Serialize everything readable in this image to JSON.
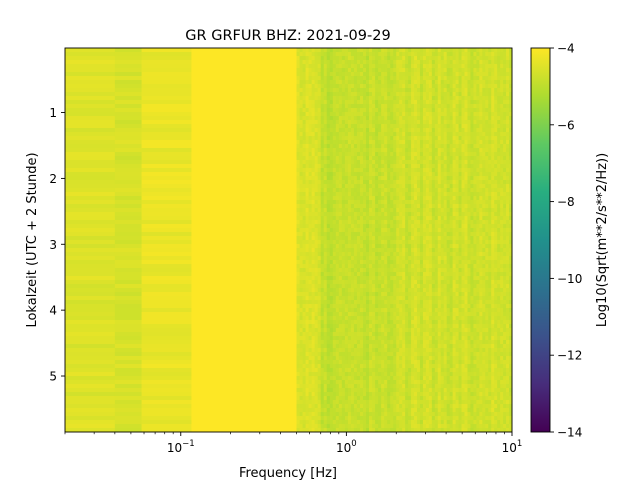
{
  "chart_data": {
    "type": "heatmap",
    "title": "GR GRFUR  BHZ: 2021-09-29",
    "xlabel": "Frequency [Hz]",
    "ylabel": "Lokalzeit (UTC + 2 Stunde)",
    "xscale": "log",
    "xlim": [
      0.02,
      10
    ],
    "ylim": [
      5.85,
      0.02
    ],
    "y_inverted": true,
    "x_ticks": [
      {
        "value": 0.1,
        "base": "10",
        "exp": "−1"
      },
      {
        "value": 1,
        "base": "10",
        "exp": "0"
      },
      {
        "value": 10,
        "base": "10",
        "exp": "1"
      }
    ],
    "y_ticks": [
      {
        "value": 1,
        "label": "1"
      },
      {
        "value": 2,
        "label": "2"
      },
      {
        "value": 3,
        "label": "3"
      },
      {
        "value": 4,
        "label": "4"
      },
      {
        "value": 5,
        "label": "5"
      }
    ],
    "colorbar": {
      "label": "Log10(Sqrt(m**2/s**2/Hz))",
      "colormap": "viridis",
      "range": [
        -14,
        -4
      ],
      "ticks": [
        {
          "value": -4,
          "label": "−4"
        },
        {
          "value": -6,
          "label": "−6"
        },
        {
          "value": -8,
          "label": "−8"
        },
        {
          "value": -10,
          "label": "−10"
        },
        {
          "value": -12,
          "label": "−12"
        },
        {
          "value": -14,
          "label": "−14"
        }
      ]
    },
    "frequency_bands": [
      {
        "f_min": 0.02,
        "f_max": 0.04,
        "value": -4.5
      },
      {
        "f_min": 0.04,
        "f_max": 0.058,
        "value": -4.6
      },
      {
        "f_min": 0.058,
        "f_max": 0.116,
        "value": -4.3
      },
      {
        "f_min": 0.116,
        "f_max": 0.5,
        "value": -4.0
      },
      {
        "f_min": 0.5,
        "f_max": 0.7,
        "value": -4.6
      },
      {
        "f_min": 0.7,
        "f_max": 2.0,
        "value": -4.9
      },
      {
        "f_min": 2.0,
        "f_max": 10,
        "value": -4.7
      }
    ]
  }
}
